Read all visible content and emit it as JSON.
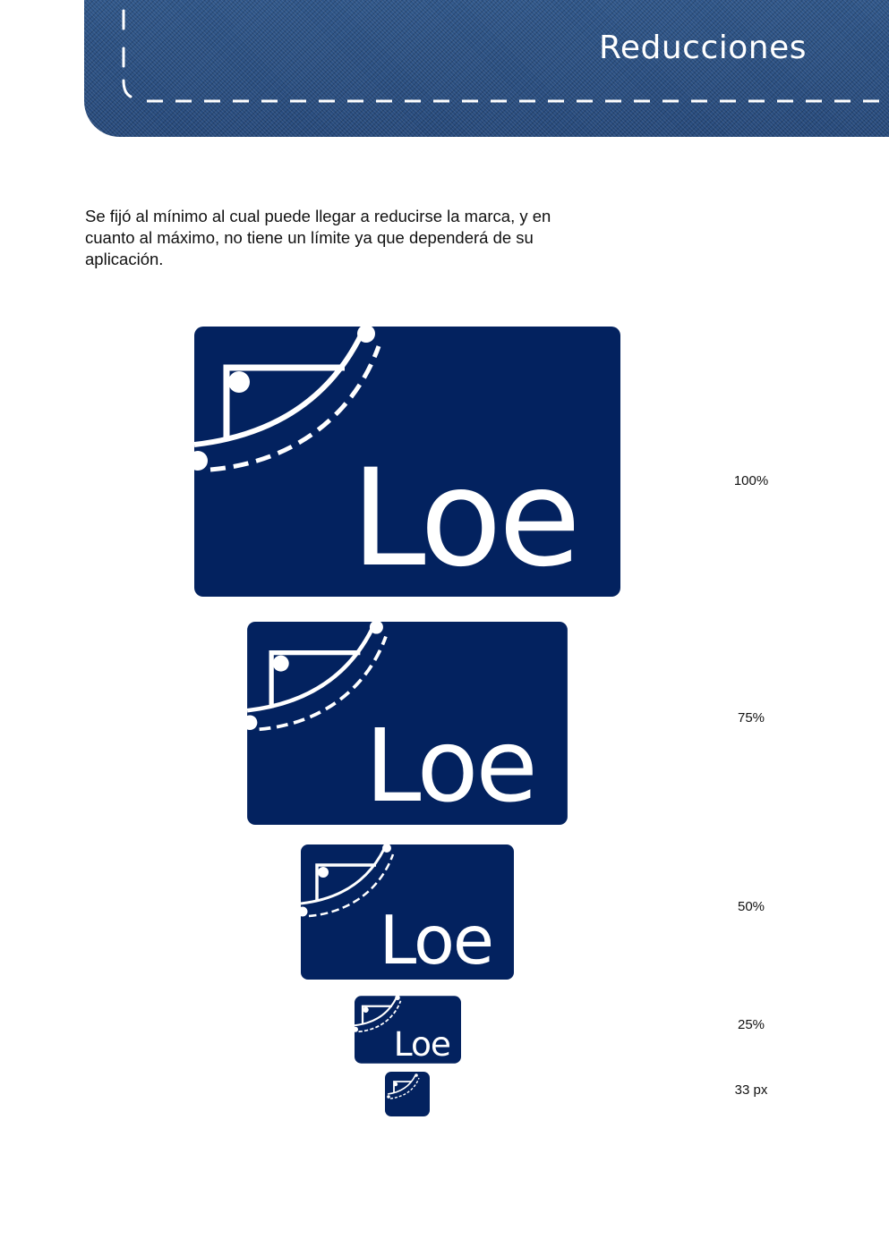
{
  "header": {
    "title": "Reducciones"
  },
  "intro": {
    "text": "Se fijó al mínimo al cual puede llegar a reducirse la marca, y en cuanto al máximo, no tiene un límite ya que dependerá de su aplicación."
  },
  "brand": {
    "wordmark": "Loe",
    "color": "#03225f",
    "banner_color": "#2a4f82"
  },
  "reductions": [
    {
      "label": "100%",
      "scale": 1.0
    },
    {
      "label": "75%",
      "scale": 0.75
    },
    {
      "label": "50%",
      "scale": 0.5
    },
    {
      "label": "25%",
      "scale": 0.25
    },
    {
      "label": "33 px"
    }
  ]
}
